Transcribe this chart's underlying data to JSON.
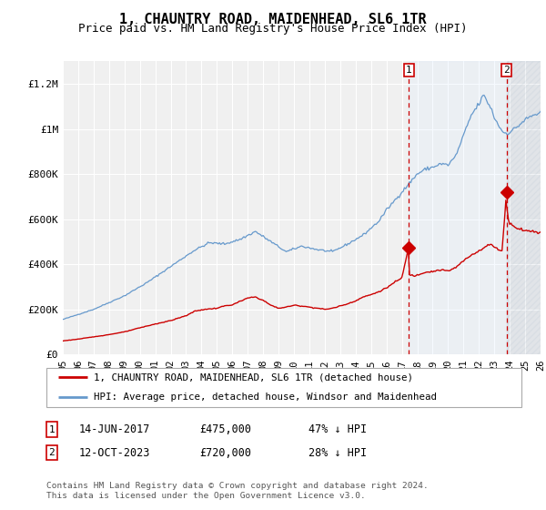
{
  "title": "1, CHAUNTRY ROAD, MAIDENHEAD, SL6 1TR",
  "subtitle": "Price paid vs. HM Land Registry's House Price Index (HPI)",
  "title_fontsize": 11,
  "subtitle_fontsize": 9,
  "background_color": "#ffffff",
  "plot_background": "#f0f0f0",
  "grid_color": "#ffffff",
  "red_color": "#cc0000",
  "blue_color": "#6699cc",
  "blue_fill_color": "#ddeeff",
  "ylim": [
    0,
    1300000
  ],
  "yticks": [
    0,
    200000,
    400000,
    600000,
    800000,
    1000000,
    1200000
  ],
  "ytick_labels": [
    "£0",
    "£200K",
    "£400K",
    "£600K",
    "£800K",
    "£1M",
    "£1.2M"
  ],
  "annotation1": {
    "label": "1",
    "date": "14-JUN-2017",
    "price": "£475,000",
    "pct": "47% ↓ HPI",
    "x_year": 2017.45,
    "y_val": 475000
  },
  "annotation2": {
    "label": "2",
    "date": "12-OCT-2023",
    "price": "£720,000",
    "pct": "28% ↓ HPI",
    "x_year": 2023.79,
    "y_val": 720000
  },
  "legend1": "1, CHAUNTRY ROAD, MAIDENHEAD, SL6 1TR (detached house)",
  "legend2": "HPI: Average price, detached house, Windsor and Maidenhead",
  "footer1": "Contains HM Land Registry data © Crown copyright and database right 2024.",
  "footer2": "This data is licensed under the Open Government Licence v3.0.",
  "xlim_left": 1995.0,
  "xlim_right": 2026.0,
  "x_tick_years": [
    1995,
    1996,
    1997,
    1998,
    1999,
    2000,
    2001,
    2002,
    2003,
    2004,
    2005,
    2006,
    2007,
    2008,
    2009,
    2010,
    2011,
    2012,
    2013,
    2014,
    2015,
    2016,
    2017,
    2018,
    2019,
    2020,
    2021,
    2022,
    2023,
    2024,
    2025,
    2026
  ]
}
